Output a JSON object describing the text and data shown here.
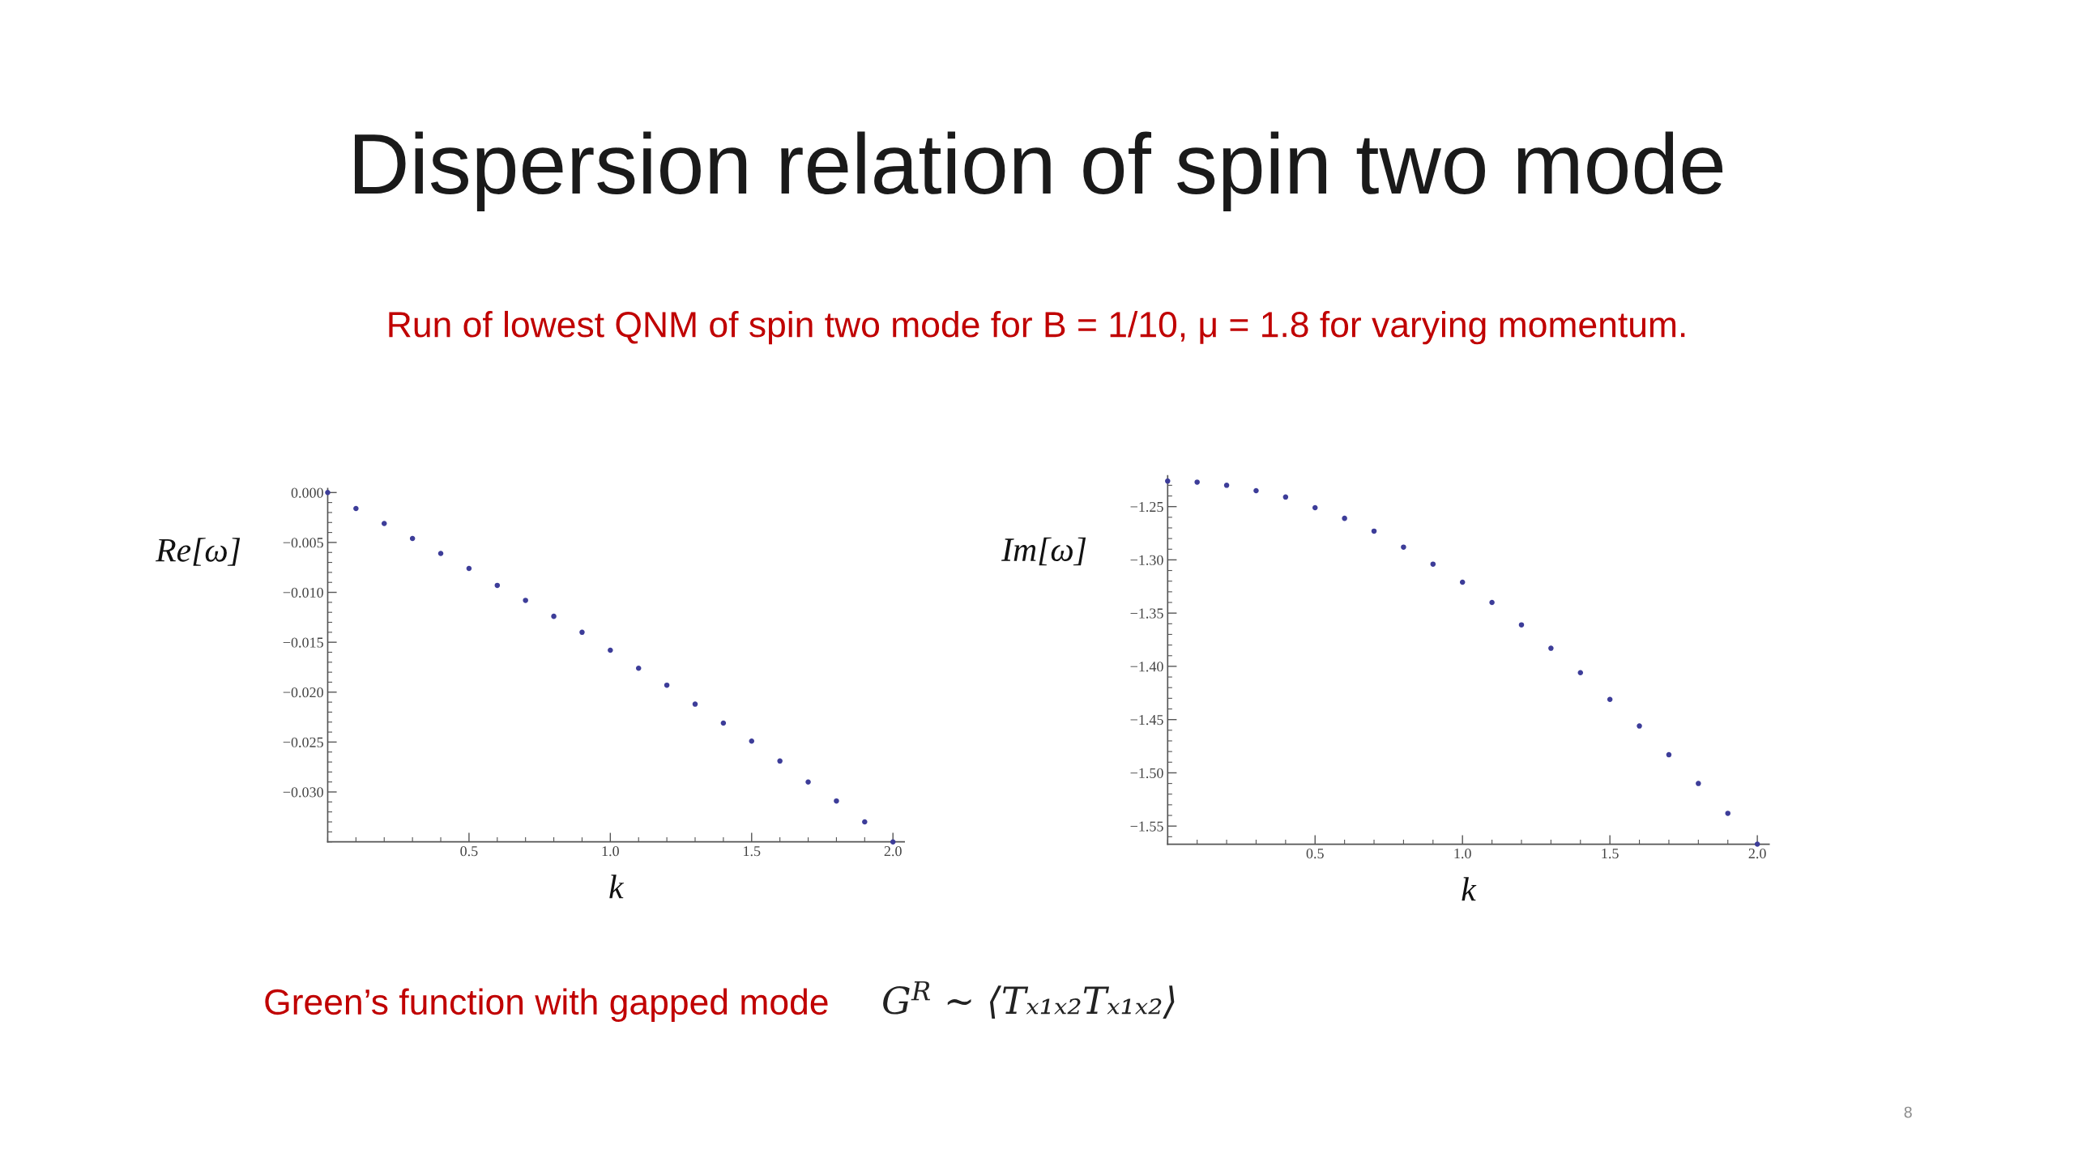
{
  "chart_data": [
    {
      "type": "scatter",
      "title": "Dispersion relation of spin two mode",
      "subtitle": "Run of lowest QNM of spin two mode for B = 1/10, μ = 1.8 for varying momentum.",
      "annotations": [
        "Green’s function with gapped mode",
        "G$^{R}$ ∼ ⟨Tₓ₁ₓ₂Tₓ₁ₓ₂⟩",
        "8"
      ],
      "xlabel": "k",
      "ylabel": "Re[ω]",
      "marker": "circle",
      "x": [
        0,
        0.1,
        0.2,
        0.3,
        0.4,
        0.5,
        0.6,
        0.7,
        0.8,
        0.9,
        1.0,
        1.1,
        1.2,
        1.3,
        1.4,
        1.5,
        1.6,
        1.7,
        1.8,
        1.9,
        2.0
      ],
      "series": [
        {
          "color": "#3d3d99",
          "values": [
            0,
            -0.0016,
            -0.0031,
            -0.0046,
            -0.0061,
            -0.0076,
            -0.0093,
            -0.0108,
            -0.0124,
            -0.014,
            -0.0158,
            -0.0176,
            -0.0193,
            -0.0212,
            -0.0231,
            -0.0249,
            -0.0269,
            -0.029,
            -0.0309,
            -0.033,
            -0.035
          ]
        }
      ],
      "xlim": [
        0,
        2.04
      ],
      "ylim": [
        -0.035,
        0.0004
      ],
      "xticks": [
        {
          "value": 0.5,
          "label": "0.5"
        },
        {
          "value": 1,
          "label": "1.0"
        },
        {
          "value": 1.5,
          "label": "1.5"
        },
        {
          "value": 2,
          "label": "2.0"
        }
      ],
      "yticks": [
        {
          "value": 0,
          "label": "0.000"
        },
        {
          "value": -0.005,
          "label": "−0.005"
        },
        {
          "value": -0.01,
          "label": "−0.010"
        },
        {
          "value": -0.015,
          "label": "−0.015"
        },
        {
          "value": -0.02,
          "label": "−0.020"
        },
        {
          "value": -0.025,
          "label": "−0.025"
        },
        {
          "value": -0.03,
          "label": "−0.030"
        }
      ]
    },
    {
      "type": "scatter",
      "xlabel": "k",
      "ylabel": "Im[ω]",
      "marker": "circle",
      "x": [
        0,
        0.1,
        0.2,
        0.3,
        0.4,
        0.5,
        0.6,
        0.7,
        0.8,
        0.9,
        1.0,
        1.1,
        1.2,
        1.3,
        1.4,
        1.5,
        1.6,
        1.7,
        1.8,
        1.9,
        2.0
      ],
      "series": [
        {
          "color": "#3d3d99",
          "values": [
            -1.226,
            -1.227,
            -1.23,
            -1.235,
            -1.241,
            -1.251,
            -1.261,
            -1.273,
            -1.288,
            -1.304,
            -1.321,
            -1.34,
            -1.361,
            -1.383,
            -1.406,
            -1.431,
            -1.456,
            -1.483,
            -1.51,
            -1.538,
            -1.567
          ]
        }
      ],
      "xlim": [
        0,
        2.04
      ],
      "ylim": [
        -1.567,
        -1.221
      ],
      "xticks": [
        {
          "value": 0.5,
          "label": "0.5"
        },
        {
          "value": 1,
          "label": "1.0"
        },
        {
          "value": 1.5,
          "label": "1.5"
        },
        {
          "value": 2,
          "label": "2.0"
        }
      ],
      "yticks": [
        {
          "value": -1.25,
          "label": "−1.25"
        },
        {
          "value": -1.3,
          "label": "−1.30"
        },
        {
          "value": -1.35,
          "label": "−1.35"
        },
        {
          "value": -1.4,
          "label": "−1.40"
        },
        {
          "value": -1.45,
          "label": "−1.45"
        },
        {
          "value": -1.5,
          "label": "−1.50"
        },
        {
          "value": -1.55,
          "label": "−1.55"
        }
      ]
    }
  ]
}
